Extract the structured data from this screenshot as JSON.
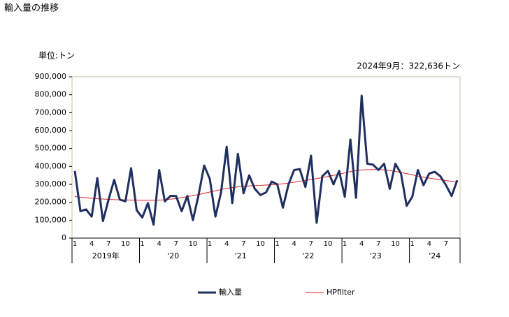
{
  "chart_data": {
    "type": "line",
    "title": "輸入量の推移",
    "unit_label": "単位:トン",
    "annotation": "2024年9月：322,636トン",
    "categories": [
      "1",
      null,
      null,
      "4",
      null,
      null,
      "7",
      null,
      null,
      "10",
      null,
      null,
      "1",
      null,
      null,
      "4",
      null,
      null,
      "7",
      null,
      null,
      "10",
      null,
      null,
      "1",
      null,
      null,
      "4",
      null,
      null,
      "7",
      null,
      null,
      "10",
      null,
      null,
      "1",
      null,
      null,
      "4",
      null,
      null,
      "7",
      null,
      null,
      "10",
      null,
      null,
      "1",
      null,
      null,
      "4",
      null,
      null,
      "7",
      null,
      null,
      "10",
      null,
      null,
      "1",
      null,
      null,
      "4",
      null,
      null,
      "7",
      null,
      null
    ],
    "year_labels": [
      "2019年",
      "'20",
      "'21",
      "'22",
      "'23",
      "'24"
    ],
    "series": [
      {
        "name": "輸入量",
        "color": "#1f2f5f",
        "width": 3,
        "values": [
          375000,
          150000,
          160000,
          120000,
          335000,
          95000,
          215000,
          325000,
          215000,
          205000,
          390000,
          155000,
          115000,
          195000,
          75000,
          380000,
          205000,
          235000,
          235000,
          150000,
          235000,
          100000,
          240000,
          405000,
          330000,
          120000,
          255000,
          510000,
          195000,
          470000,
          250000,
          350000,
          275000,
          240000,
          255000,
          315000,
          300000,
          170000,
          300000,
          380000,
          385000,
          285000,
          460000,
          85000,
          345000,
          375000,
          300000,
          375000,
          230000,
          550000,
          225000,
          795000,
          415000,
          410000,
          380000,
          415000,
          275000,
          415000,
          360000,
          180000,
          230000,
          380000,
          295000,
          360000,
          370000,
          345000,
          295000,
          235000,
          322636
        ]
      },
      {
        "name": "HPfilter",
        "color": "#e0201c",
        "width": 1,
        "values": [
          232000,
          228000,
          225000,
          222000,
          220000,
          218000,
          216000,
          215000,
          214000,
          213000,
          212000,
          212000,
          211000,
          211000,
          211000,
          212000,
          214000,
          217000,
          221000,
          226000,
          231000,
          237000,
          243000,
          250000,
          257000,
          264000,
          271000,
          277000,
          282000,
          286000,
          289000,
          291000,
          293000,
          294000,
          296000,
          298000,
          300000,
          303000,
          307000,
          312000,
          317000,
          322000,
          327000,
          332000,
          338000,
          344000,
          350000,
          357000,
          364000,
          371000,
          376000,
          380000,
          382000,
          383000,
          383000,
          381000,
          377000,
          372000,
          366000,
          360000,
          353000,
          346000,
          340000,
          335000,
          330000,
          325000,
          321000,
          317000,
          314000
        ]
      }
    ],
    "ylim": [
      0,
      900000
    ],
    "yticks": [
      0,
      {
        "value": 100000,
        "label": "100,000"
      },
      {
        "value": 200000,
        "label": "200,000"
      },
      {
        "value": 300000,
        "label": "300,000"
      },
      {
        "value": 400000,
        "label": "400,000"
      },
      {
        "value": 500000,
        "label": "500,000"
      },
      {
        "value": 600000,
        "label": "600,000"
      },
      {
        "value": 700000,
        "label": "700,000"
      },
      {
        "value": 800000,
        "label": "800,000"
      },
      {
        "value": 900000,
        "label": "900,000"
      }
    ],
    "plot_border_color": "#c8c0a0"
  }
}
